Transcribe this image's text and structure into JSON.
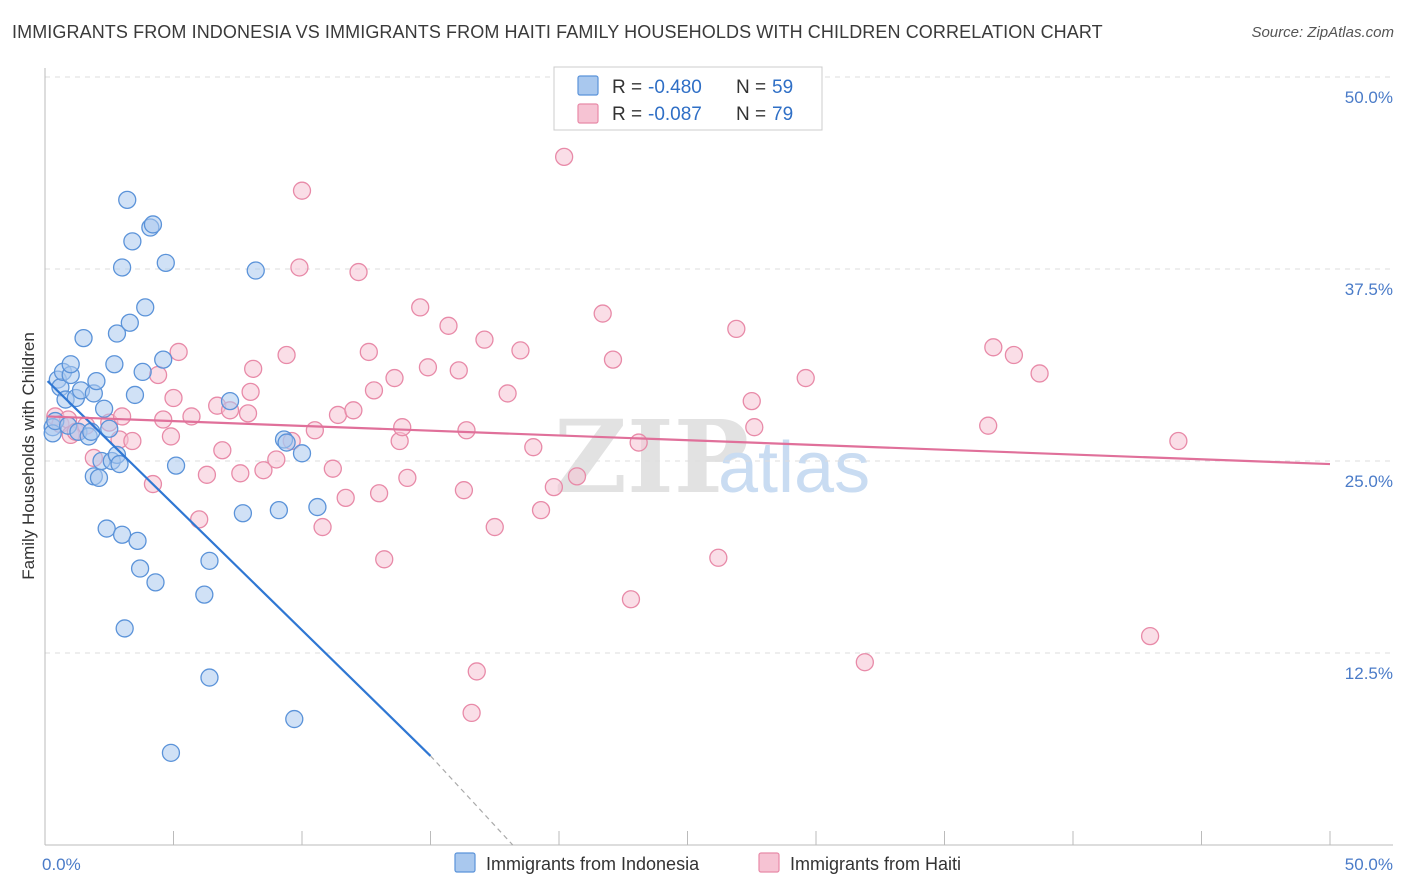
{
  "title": "IMMIGRANTS FROM INDONESIA VS IMMIGRANTS FROM HAITI FAMILY HOUSEHOLDS WITH CHILDREN CORRELATION CHART",
  "source": "Source: ZipAtlas.com",
  "watermark": {
    "zip": "ZIP",
    "atlas": "atlas"
  },
  "legend": {
    "r_label": "R = ",
    "n_label": "N = ",
    "entries": [
      {
        "r": "-0.480",
        "n": "59"
      },
      {
        "r": "-0.087",
        "n": "79"
      }
    ]
  },
  "colors": {
    "indonesia_fill": "#a9c8ee",
    "indonesia_stroke": "#5b93d9",
    "indonesia_line": "#2f77d3",
    "haiti_fill": "#f6c3d3",
    "haiti_stroke": "#e88aa8",
    "haiti_line": "#e0709a",
    "value_text": "#2f6fc6",
    "grid": "#dddddd"
  },
  "chart_data": {
    "type": "scatter",
    "title": "IMMIGRANTS FROM INDONESIA VS IMMIGRANTS FROM HAITI FAMILY HOUSEHOLDS WITH CHILDREN CORRELATION CHART",
    "xlabel": "",
    "ylabel": "Family Households with Children",
    "xlim": [
      0,
      50
    ],
    "ylim": [
      0,
      50
    ],
    "x_tick_labels": [
      {
        "value": 0,
        "label": "0.0%"
      },
      {
        "value": 50,
        "label": "50.0%"
      }
    ],
    "y_tick_labels": [
      {
        "value": 12.5,
        "label": "12.5%"
      },
      {
        "value": 25,
        "label": "25.0%"
      },
      {
        "value": 37.5,
        "label": "37.5%"
      },
      {
        "value": 50,
        "label": "50.0%"
      }
    ],
    "grid": true,
    "legend_position": "top-center",
    "series": [
      {
        "name": "Immigrants from Indonesia",
        "r": -0.48,
        "n": 59,
        "trend": {
          "x0": 0.1,
          "y0": 30.2,
          "x1": 15.0,
          "y1": 5.8,
          "dash_to": [
            18.2,
            0.0
          ]
        },
        "points": [
          [
            0.3,
            27.2
          ],
          [
            0.3,
            26.8
          ],
          [
            0.4,
            27.6
          ],
          [
            0.5,
            30.3
          ],
          [
            0.6,
            29.8
          ],
          [
            0.7,
            30.8
          ],
          [
            0.8,
            29.0
          ],
          [
            0.9,
            27.3
          ],
          [
            1.0,
            30.6
          ],
          [
            1.0,
            31.3
          ],
          [
            1.2,
            29.1
          ],
          [
            1.3,
            26.9
          ],
          [
            1.4,
            29.6
          ],
          [
            1.5,
            33.0
          ],
          [
            1.7,
            26.6
          ],
          [
            1.8,
            26.9
          ],
          [
            1.9,
            24.0
          ],
          [
            1.9,
            29.4
          ],
          [
            2.0,
            30.2
          ],
          [
            2.1,
            23.9
          ],
          [
            2.2,
            25.0
          ],
          [
            2.3,
            28.4
          ],
          [
            2.4,
            20.6
          ],
          [
            2.5,
            27.1
          ],
          [
            2.6,
            25.0
          ],
          [
            2.7,
            31.3
          ],
          [
            2.8,
            33.3
          ],
          [
            2.8,
            25.4
          ],
          [
            2.9,
            24.8
          ],
          [
            3.0,
            20.2
          ],
          [
            3.0,
            37.6
          ],
          [
            3.1,
            14.1
          ],
          [
            3.2,
            42.0
          ],
          [
            3.3,
            34.0
          ],
          [
            3.4,
            39.3
          ],
          [
            3.5,
            29.3
          ],
          [
            3.6,
            19.8
          ],
          [
            3.7,
            18.0
          ],
          [
            3.8,
            30.8
          ],
          [
            3.9,
            35.0
          ],
          [
            4.1,
            40.2
          ],
          [
            4.2,
            40.4
          ],
          [
            4.3,
            17.1
          ],
          [
            4.6,
            31.6
          ],
          [
            4.7,
            37.9
          ],
          [
            4.9,
            6.0
          ],
          [
            5.1,
            24.7
          ],
          [
            6.2,
            16.3
          ],
          [
            6.4,
            10.9
          ],
          [
            6.4,
            18.5
          ],
          [
            7.2,
            28.9
          ],
          [
            7.7,
            21.6
          ],
          [
            8.2,
            37.4
          ],
          [
            9.1,
            21.8
          ],
          [
            9.3,
            26.4
          ],
          [
            9.4,
            26.2
          ],
          [
            10.0,
            25.5
          ],
          [
            9.7,
            8.2
          ],
          [
            10.6,
            22.0
          ]
        ]
      },
      {
        "name": "Immigrants from Haiti",
        "r": -0.087,
        "n": 79,
        "trend": {
          "x0": 0.1,
          "y0": 27.9,
          "x1": 50.0,
          "y1": 24.8
        },
        "points": [
          [
            0.4,
            27.9
          ],
          [
            0.6,
            27.4
          ],
          [
            0.9,
            27.7
          ],
          [
            1.0,
            26.7
          ],
          [
            1.2,
            26.9
          ],
          [
            1.6,
            27.3
          ],
          [
            1.9,
            25.2
          ],
          [
            2.5,
            27.5
          ],
          [
            2.9,
            26.4
          ],
          [
            3.0,
            27.9
          ],
          [
            3.4,
            26.3
          ],
          [
            4.2,
            23.5
          ],
          [
            4.4,
            30.6
          ],
          [
            4.6,
            27.7
          ],
          [
            4.9,
            26.6
          ],
          [
            5.0,
            29.1
          ],
          [
            5.2,
            32.1
          ],
          [
            5.7,
            27.9
          ],
          [
            6.0,
            21.2
          ],
          [
            6.3,
            24.1
          ],
          [
            6.7,
            28.6
          ],
          [
            6.9,
            25.7
          ],
          [
            7.2,
            28.3
          ],
          [
            7.6,
            24.2
          ],
          [
            7.9,
            28.1
          ],
          [
            8.0,
            29.5
          ],
          [
            8.1,
            31.0
          ],
          [
            8.5,
            24.4
          ],
          [
            9.0,
            25.1
          ],
          [
            9.4,
            31.9
          ],
          [
            9.6,
            26.3
          ],
          [
            9.9,
            37.6
          ],
          [
            10.0,
            42.6
          ],
          [
            10.5,
            27.0
          ],
          [
            10.8,
            20.7
          ],
          [
            11.2,
            24.5
          ],
          [
            11.4,
            28.0
          ],
          [
            11.7,
            22.6
          ],
          [
            12.0,
            28.3
          ],
          [
            12.2,
            37.3
          ],
          [
            12.6,
            32.1
          ],
          [
            12.8,
            29.6
          ],
          [
            13.0,
            22.9
          ],
          [
            13.2,
            18.6
          ],
          [
            13.6,
            30.4
          ],
          [
            13.8,
            26.3
          ],
          [
            13.9,
            27.2
          ],
          [
            14.1,
            23.9
          ],
          [
            14.6,
            35.0
          ],
          [
            14.9,
            31.1
          ],
          [
            15.7,
            33.8
          ],
          [
            16.1,
            30.9
          ],
          [
            16.3,
            23.1
          ],
          [
            16.4,
            27.0
          ],
          [
            16.6,
            8.6
          ],
          [
            16.8,
            11.3
          ],
          [
            17.1,
            32.9
          ],
          [
            17.5,
            20.7
          ],
          [
            18.0,
            29.4
          ],
          [
            18.5,
            32.2
          ],
          [
            19.0,
            25.9
          ],
          [
            19.3,
            21.8
          ],
          [
            19.8,
            23.3
          ],
          [
            20.2,
            44.8
          ],
          [
            20.7,
            24.0
          ],
          [
            21.7,
            34.6
          ],
          [
            22.1,
            31.6
          ],
          [
            22.8,
            16.0
          ],
          [
            23.1,
            26.2
          ],
          [
            26.2,
            18.7
          ],
          [
            26.9,
            33.6
          ],
          [
            27.5,
            28.9
          ],
          [
            27.6,
            27.2
          ],
          [
            29.6,
            30.4
          ],
          [
            31.9,
            11.9
          ],
          [
            36.7,
            27.3
          ],
          [
            36.9,
            32.4
          ],
          [
            37.7,
            31.9
          ],
          [
            38.7,
            30.7
          ],
          [
            43.0,
            13.6
          ],
          [
            44.1,
            26.3
          ]
        ]
      }
    ]
  }
}
